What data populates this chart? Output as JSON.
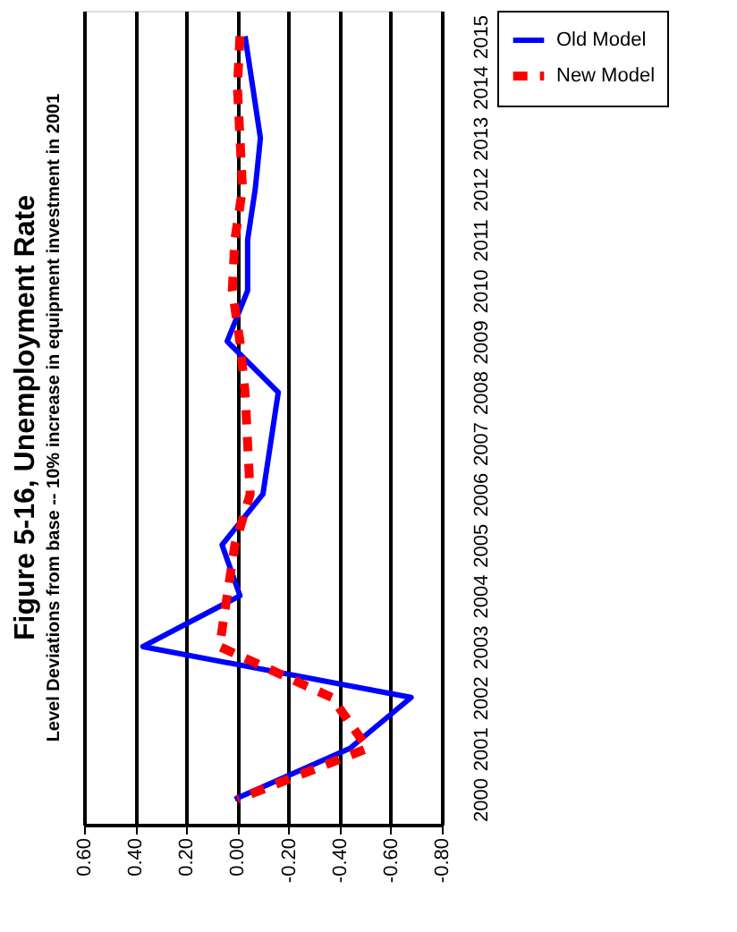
{
  "chart_data": {
    "type": "line",
    "orientation": "horizontal",
    "title": "Figure 5-16, Unemployment Rate",
    "subtitle": "Level Deviations from base -- 10% increase in equipment investment in 2001",
    "categories": [
      "2015",
      "2014",
      "2013",
      "2012",
      "2011",
      "2010",
      "2009",
      "2008",
      "2007",
      "2006",
      "2005",
      "2004",
      "2003",
      "2002",
      "2001",
      "2000"
    ],
    "series": [
      {
        "name": "Old Model",
        "color": "#0000ff",
        "line_style": "solid",
        "values": [
          -0.03,
          -0.06,
          -0.09,
          -0.07,
          -0.04,
          -0.04,
          0.04,
          -0.16,
          -0.13,
          -0.1,
          0.06,
          -0.01,
          0.37,
          -0.68,
          -0.44,
          0.01
        ]
      },
      {
        "name": "New Model",
        "color": "#ff0000",
        "line_style": "dashed",
        "values": [
          -0.01,
          0.0,
          -0.01,
          -0.02,
          0.01,
          0.02,
          -0.01,
          -0.03,
          -0.04,
          -0.05,
          0.01,
          0.04,
          0.07,
          -0.37,
          -0.51,
          0.0
        ]
      }
    ],
    "xlim": [
      0.6,
      -0.8
    ],
    "xticks": [
      {
        "value": 0.6,
        "label": "0.60"
      },
      {
        "value": 0.4,
        "label": "0.40"
      },
      {
        "value": 0.2,
        "label": "0.20"
      },
      {
        "value": 0,
        "label": "0.00"
      },
      {
        "value": -0.2,
        "label": "-0.20"
      },
      {
        "value": -0.4,
        "label": "-0.40"
      },
      {
        "value": -0.6,
        "label": "-0.60"
      },
      {
        "value": -0.8,
        "label": "-0.80"
      }
    ],
    "grid": "x",
    "legend": "right",
    "marker": "none"
  }
}
